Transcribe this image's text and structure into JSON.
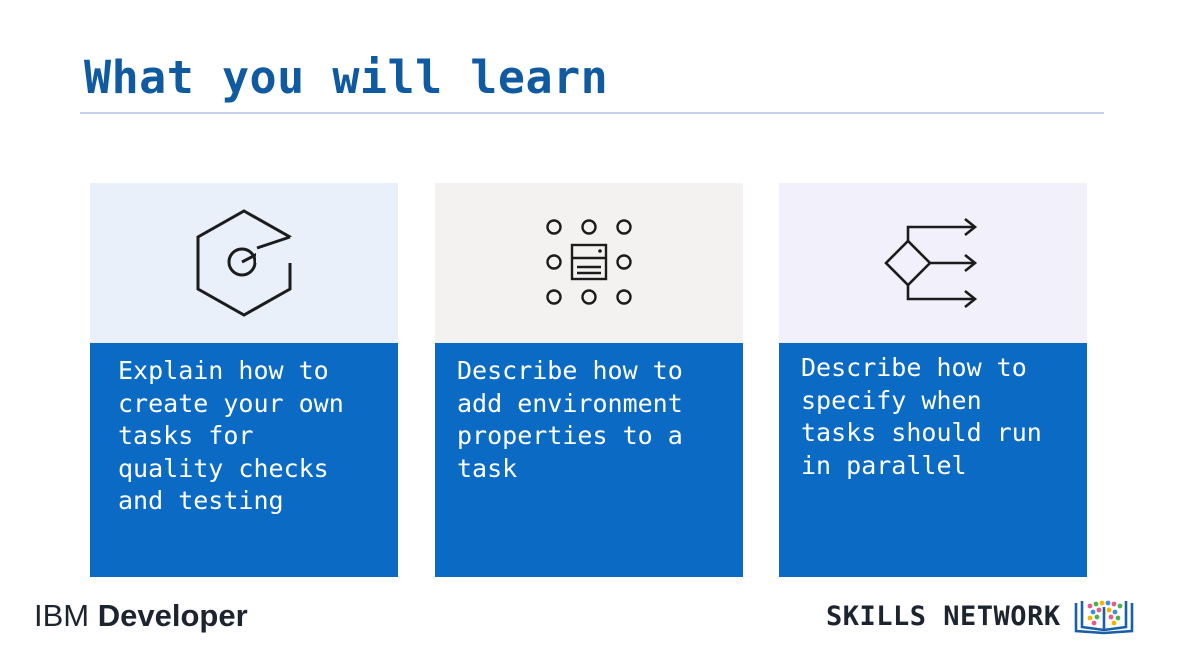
{
  "slide": {
    "title": "What you will learn"
  },
  "cards": [
    {
      "text": "Explain how to\ncreate your own\ntasks for\nquality checks\nand testing",
      "icon": "hexagon-target-icon"
    },
    {
      "text": "Describe how to\nadd environment\nproperties to a\ntask",
      "icon": "environment-grid-icon"
    },
    {
      "text": "Describe how to\nspecify when\ntasks should run\nin parallel",
      "icon": "parallel-branch-icon"
    }
  ],
  "footer": {
    "brand_prefix": "IBM",
    "brand_name": "Developer",
    "skills_network": "SKILLS NETWORK",
    "skills_icon": "open-book-icon"
  },
  "colors": {
    "title": "#0f5aa0",
    "card_blue": "#0b6bc4",
    "card_1_top": "#e9f0fa",
    "card_2_top": "#f4f2f1",
    "card_3_top": "#f2f0fb",
    "rule": "#c7d1ec"
  }
}
